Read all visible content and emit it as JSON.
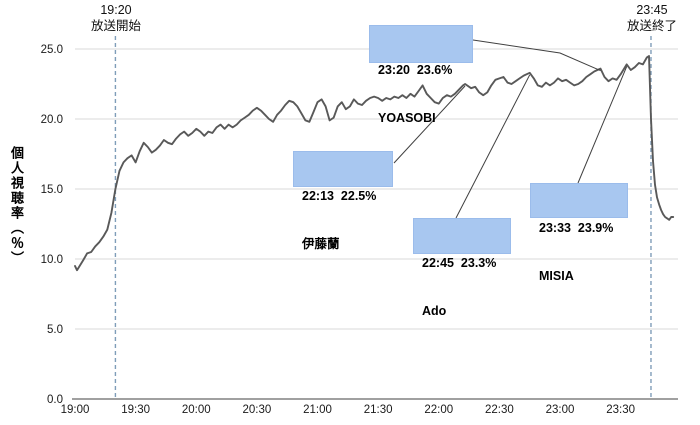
{
  "chart_data": {
    "type": "line",
    "title": "",
    "ylabel": "個人視聴率（％）",
    "xlabel": "",
    "ylim": [
      0,
      25
    ],
    "grid": "horizontal",
    "legend": "none",
    "y_ticks": [
      {
        "value": 0,
        "label": "0.0"
      },
      {
        "value": 5,
        "label": "5.0"
      },
      {
        "value": 10,
        "label": "10.0"
      },
      {
        "value": 15,
        "label": "15.0"
      },
      {
        "value": 20,
        "label": "20.0"
      },
      {
        "value": 25,
        "label": "25.0"
      }
    ],
    "x_ticks": [
      "19:00",
      "19:30",
      "20:00",
      "20:30",
      "21:00",
      "21:30",
      "22:00",
      "22:30",
      "23:00",
      "23:30"
    ],
    "events": [
      {
        "time": "19:20",
        "label_time": "19:20",
        "label_text": "放送開始"
      },
      {
        "time": "23:45",
        "label_time": "23:45",
        "label_text": "放送終了"
      }
    ],
    "annotations": [
      {
        "id": "yoasobi",
        "time": "23:20",
        "value": 23.6,
        "line1": "23:20  23.6%",
        "line2": "YOASOBI"
      },
      {
        "id": "itoran",
        "time": "22:13",
        "value": 22.5,
        "line1": "22:13  22.5%",
        "line2": "伊藤蘭"
      },
      {
        "id": "ado",
        "time": "22:45",
        "value": 23.3,
        "line1": "22:45  23.3%",
        "line2": "Ado"
      },
      {
        "id": "misia",
        "time": "23:33",
        "value": 23.9,
        "line1": "23:33  23.9%",
        "line2": "MISIA"
      }
    ],
    "colors": {
      "line": "#595959",
      "grid": "#d9d9d9",
      "axis": "#808080",
      "dashed_event_line": "#7f9db9",
      "callout_fill": "#a8c7f0",
      "text": "#1a1a1a"
    },
    "series": [
      {
        "name": "個人視聴率",
        "points": [
          [
            "19:00",
            9.5
          ],
          [
            "19:01",
            9.2
          ],
          [
            "19:04",
            9.9
          ],
          [
            "19:06",
            10.4
          ],
          [
            "19:08",
            10.5
          ],
          [
            "19:10",
            10.9
          ],
          [
            "19:12",
            11.2
          ],
          [
            "19:14",
            11.6
          ],
          [
            "19:16",
            12.1
          ],
          [
            "19:18",
            13.3
          ],
          [
            "19:20",
            15.0
          ],
          [
            "19:22",
            16.3
          ],
          [
            "19:24",
            16.9
          ],
          [
            "19:26",
            17.2
          ],
          [
            "19:28",
            17.4
          ],
          [
            "19:30",
            16.9
          ],
          [
            "19:32",
            17.7
          ],
          [
            "19:34",
            18.3
          ],
          [
            "19:36",
            18.0
          ],
          [
            "19:38",
            17.6
          ],
          [
            "19:40",
            17.8
          ],
          [
            "19:42",
            18.1
          ],
          [
            "19:44",
            18.5
          ],
          [
            "19:46",
            18.3
          ],
          [
            "19:48",
            18.2
          ],
          [
            "19:50",
            18.6
          ],
          [
            "19:52",
            18.9
          ],
          [
            "19:54",
            19.1
          ],
          [
            "19:56",
            18.8
          ],
          [
            "19:58",
            19.0
          ],
          [
            "20:00",
            19.3
          ],
          [
            "20:02",
            19.1
          ],
          [
            "20:04",
            18.8
          ],
          [
            "20:06",
            19.1
          ],
          [
            "20:08",
            19.0
          ],
          [
            "20:10",
            19.4
          ],
          [
            "20:12",
            19.6
          ],
          [
            "20:14",
            19.3
          ],
          [
            "20:16",
            19.6
          ],
          [
            "20:18",
            19.4
          ],
          [
            "20:20",
            19.6
          ],
          [
            "20:22",
            19.9
          ],
          [
            "20:24",
            20.1
          ],
          [
            "20:26",
            20.3
          ],
          [
            "20:28",
            20.6
          ],
          [
            "20:30",
            20.8
          ],
          [
            "20:32",
            20.6
          ],
          [
            "20:34",
            20.3
          ],
          [
            "20:36",
            20.0
          ],
          [
            "20:38",
            19.8
          ],
          [
            "20:40",
            20.3
          ],
          [
            "20:42",
            20.6
          ],
          [
            "20:44",
            21.0
          ],
          [
            "20:46",
            21.3
          ],
          [
            "20:48",
            21.2
          ],
          [
            "20:50",
            20.9
          ],
          [
            "20:52",
            20.4
          ],
          [
            "20:54",
            19.9
          ],
          [
            "20:56",
            19.8
          ],
          [
            "20:58",
            20.5
          ],
          [
            "21:00",
            21.2
          ],
          [
            "21:02",
            21.4
          ],
          [
            "21:04",
            20.9
          ],
          [
            "21:06",
            19.9
          ],
          [
            "21:08",
            20.1
          ],
          [
            "21:10",
            20.9
          ],
          [
            "21:12",
            21.2
          ],
          [
            "21:14",
            20.7
          ],
          [
            "21:16",
            20.9
          ],
          [
            "21:18",
            21.4
          ],
          [
            "21:20",
            21.1
          ],
          [
            "21:22",
            21.0
          ],
          [
            "21:24",
            21.3
          ],
          [
            "21:26",
            21.5
          ],
          [
            "21:28",
            21.6
          ],
          [
            "21:30",
            21.5
          ],
          [
            "21:32",
            21.3
          ],
          [
            "21:34",
            21.5
          ],
          [
            "21:36",
            21.4
          ],
          [
            "21:38",
            21.6
          ],
          [
            "21:40",
            21.5
          ],
          [
            "21:42",
            21.7
          ],
          [
            "21:44",
            21.5
          ],
          [
            "21:46",
            21.8
          ],
          [
            "21:48",
            21.6
          ],
          [
            "21:50",
            22.0
          ],
          [
            "21:52",
            22.4
          ],
          [
            "21:54",
            21.8
          ],
          [
            "21:56",
            21.5
          ],
          [
            "21:58",
            21.2
          ],
          [
            "22:00",
            21.1
          ],
          [
            "22:02",
            21.5
          ],
          [
            "22:04",
            21.7
          ],
          [
            "22:06",
            21.6
          ],
          [
            "22:08",
            21.8
          ],
          [
            "22:10",
            22.1
          ],
          [
            "22:12",
            22.4
          ],
          [
            "22:13",
            22.5
          ],
          [
            "22:16",
            22.2
          ],
          [
            "22:18",
            22.3
          ],
          [
            "22:20",
            21.9
          ],
          [
            "22:22",
            21.7
          ],
          [
            "22:24",
            21.9
          ],
          [
            "22:26",
            22.4
          ],
          [
            "22:28",
            22.8
          ],
          [
            "22:30",
            22.9
          ],
          [
            "22:32",
            23.0
          ],
          [
            "22:34",
            22.6
          ],
          [
            "22:36",
            22.5
          ],
          [
            "22:38",
            22.7
          ],
          [
            "22:40",
            22.9
          ],
          [
            "22:42",
            23.1
          ],
          [
            "22:45",
            23.3
          ],
          [
            "22:47",
            22.9
          ],
          [
            "22:49",
            22.4
          ],
          [
            "22:51",
            22.3
          ],
          [
            "22:53",
            22.6
          ],
          [
            "22:55",
            22.4
          ],
          [
            "22:57",
            22.6
          ],
          [
            "22:59",
            22.9
          ],
          [
            "23:01",
            22.7
          ],
          [
            "23:03",
            22.8
          ],
          [
            "23:05",
            22.6
          ],
          [
            "23:07",
            22.4
          ],
          [
            "23:09",
            22.5
          ],
          [
            "23:11",
            22.7
          ],
          [
            "23:13",
            23.0
          ],
          [
            "23:15",
            23.2
          ],
          [
            "23:17",
            23.4
          ],
          [
            "23:20",
            23.6
          ],
          [
            "23:22",
            23.0
          ],
          [
            "23:24",
            22.7
          ],
          [
            "23:26",
            22.9
          ],
          [
            "23:28",
            22.8
          ],
          [
            "23:30",
            23.2
          ],
          [
            "23:33",
            23.9
          ],
          [
            "23:35",
            23.5
          ],
          [
            "23:37",
            23.7
          ],
          [
            "23:39",
            24.0
          ],
          [
            "23:41",
            23.9
          ],
          [
            "23:43",
            24.4
          ],
          [
            "23:44",
            24.5
          ],
          [
            "23:45",
            20.0
          ],
          [
            "23:46",
            17.0
          ],
          [
            "23:47",
            15.3
          ],
          [
            "23:48",
            14.4
          ],
          [
            "23:49",
            13.9
          ],
          [
            "23:50",
            13.5
          ],
          [
            "23:51",
            13.2
          ],
          [
            "23:52",
            13.0
          ],
          [
            "23:53",
            12.9
          ],
          [
            "23:54",
            12.8
          ],
          [
            "23:55",
            13.0
          ],
          [
            "23:56",
            13.0
          ]
        ]
      }
    ]
  }
}
